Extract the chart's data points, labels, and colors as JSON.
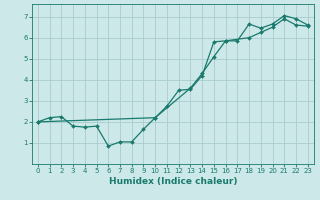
{
  "xlabel": "Humidex (Indice chaleur)",
  "ylabel": "",
  "background_color": "#cce8e8",
  "grid_color": "#aacccc",
  "line_color": "#1a7a6e",
  "xlim": [
    -0.5,
    23.5
  ],
  "ylim": [
    0.0,
    7.6
  ],
  "xticks": [
    0,
    1,
    2,
    3,
    4,
    5,
    6,
    7,
    8,
    9,
    10,
    11,
    12,
    13,
    14,
    15,
    16,
    17,
    18,
    19,
    20,
    21,
    22,
    23
  ],
  "yticks": [
    1,
    2,
    3,
    4,
    5,
    6,
    7
  ],
  "line1_x": [
    0,
    1,
    2,
    3,
    4,
    5,
    6,
    7,
    8,
    9,
    10,
    11,
    12,
    13,
    14,
    15,
    16,
    17,
    18,
    19,
    20,
    21,
    22,
    23
  ],
  "line1_y": [
    2.0,
    2.2,
    2.25,
    1.8,
    1.75,
    1.8,
    0.85,
    1.05,
    1.05,
    1.65,
    2.2,
    2.75,
    3.5,
    3.55,
    4.2,
    5.8,
    5.85,
    5.85,
    6.65,
    6.45,
    6.65,
    7.05,
    6.9,
    6.6
  ],
  "line2_x": [
    0,
    10,
    13,
    14,
    15,
    16,
    18,
    19,
    20,
    21,
    22,
    23
  ],
  "line2_y": [
    2.0,
    2.2,
    3.6,
    4.3,
    5.1,
    5.85,
    6.0,
    6.25,
    6.5,
    6.9,
    6.6,
    6.55
  ],
  "tick_fontsize": 5.0,
  "xlabel_fontsize": 6.5,
  "marker_size": 2.0,
  "line_width": 0.9
}
